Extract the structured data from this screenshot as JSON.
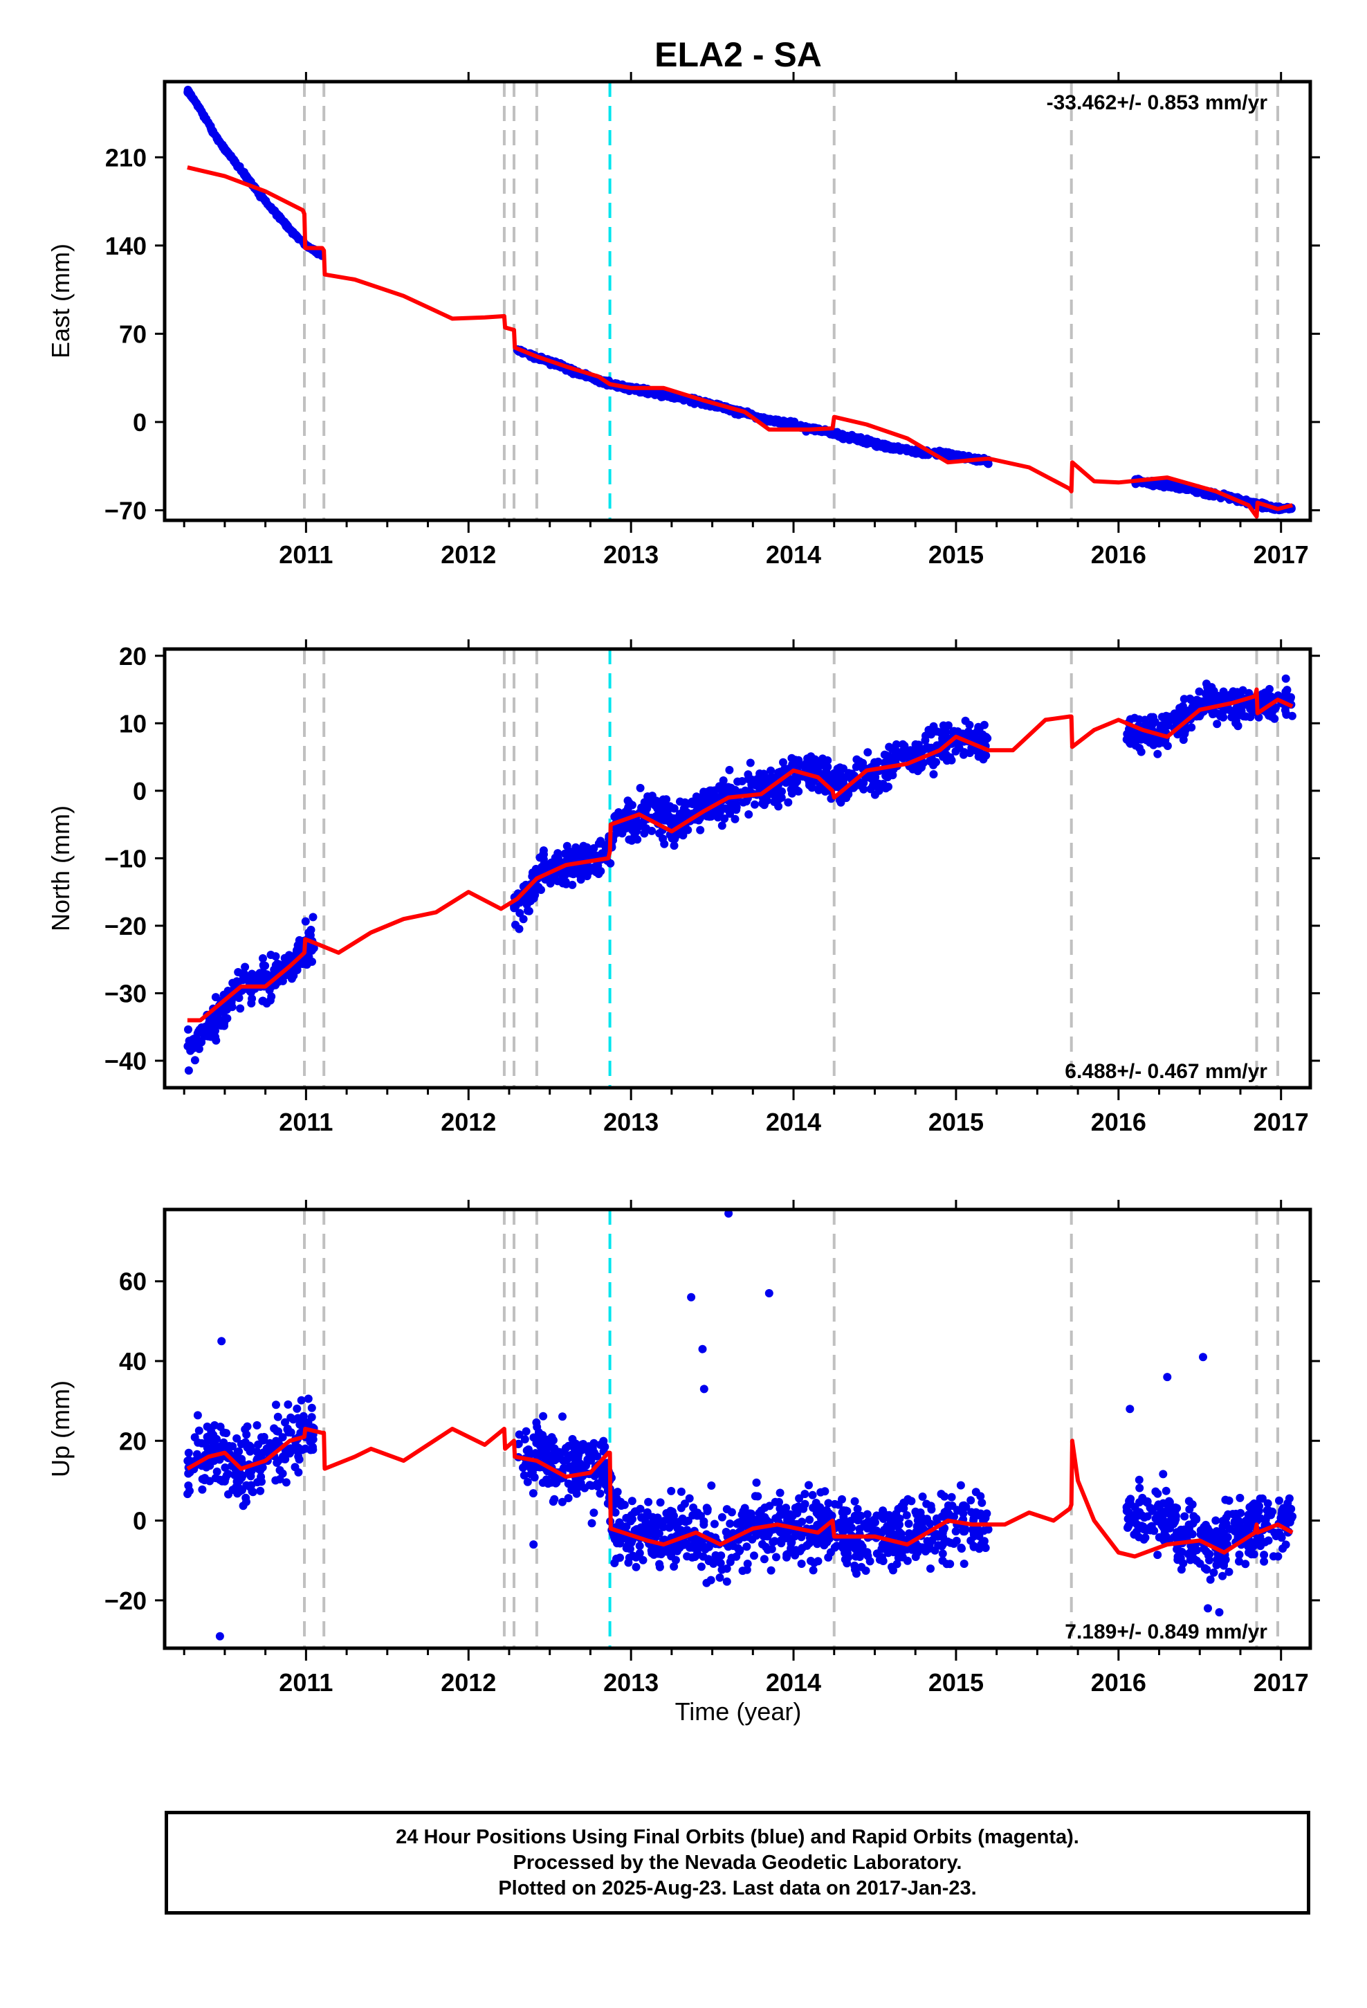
{
  "chart_data": {
    "title": "ELA2 - SA",
    "type": "scatter",
    "x_label": "Time (year)",
    "xlim": [
      2010.13,
      2017.18
    ],
    "x_ticks": [
      2011,
      2012,
      2013,
      2014,
      2015,
      2016,
      2017
    ],
    "x_tick_labels": [
      "2011",
      "2012",
      "2013",
      "2014",
      "2015",
      "2016",
      "2017"
    ],
    "equipment_change_lines": [
      2010.99,
      2011.11,
      2012.22,
      2012.28,
      2012.42,
      2014.25,
      2015.71,
      2016.85,
      2016.98
    ],
    "earthquake_line": 2012.87,
    "colors": {
      "data": "#0000ee",
      "model": "#ff0000",
      "equipment": "#c0c0c0",
      "earthquake": "#00e5ee"
    },
    "panels": [
      {
        "name": "East",
        "ylabel": "East (mm)",
        "ylim": [
          -78,
          270
        ],
        "y_ticks": [
          -70,
          0,
          70,
          140,
          210
        ],
        "y_tick_labels": [
          "−70",
          "0",
          "70",
          "140",
          "210"
        ],
        "rate_label": "-33.462+/- 0.853 mm/yr",
        "rate_position": "top-right",
        "data_segments": [
          [
            [
              2010.27,
              263
            ],
            [
              2010.35,
              248
            ],
            [
              2010.45,
              225
            ],
            [
              2010.6,
              200
            ],
            [
              2010.75,
              175
            ],
            [
              2010.9,
              153
            ],
            [
              2011.0,
              140
            ],
            [
              2011.1,
              132
            ]
          ],
          [
            [
              2012.3,
              57
            ],
            [
              2012.5,
              48
            ],
            [
              2012.7,
              38
            ],
            [
              2012.87,
              30
            ],
            [
              2013.0,
              27
            ],
            [
              2013.2,
              22
            ],
            [
              2013.5,
              14
            ],
            [
              2013.8,
              3
            ],
            [
              2014.0,
              -2
            ],
            [
              2014.2,
              -8
            ],
            [
              2014.4,
              -14
            ],
            [
              2014.6,
              -20
            ],
            [
              2014.8,
              -24
            ],
            [
              2015.0,
              -27
            ],
            [
              2015.2,
              -31
            ]
          ],
          [
            [
              2016.1,
              -47
            ],
            [
              2016.3,
              -50
            ],
            [
              2016.5,
              -55
            ],
            [
              2016.7,
              -60
            ],
            [
              2016.85,
              -65
            ],
            [
              2017.0,
              -69
            ],
            [
              2017.07,
              -68
            ]
          ]
        ],
        "scatter": [
          0.9,
          1.4,
          1.4
        ],
        "model": [
          [
            2010.27,
            202
          ],
          [
            2010.5,
            195
          ],
          [
            2010.75,
            183
          ],
          [
            2010.98,
            168
          ],
          [
            2010.99,
            165
          ],
          [
            2010.995,
            138
          ],
          [
            2011.1,
            138
          ],
          [
            2011.11,
            136
          ],
          [
            2011.115,
            117
          ],
          [
            2011.3,
            113
          ],
          [
            2011.6,
            100
          ],
          [
            2011.9,
            82
          ],
          [
            2012.1,
            83
          ],
          [
            2012.22,
            84
          ],
          [
            2012.225,
            75
          ],
          [
            2012.28,
            73
          ],
          [
            2012.285,
            59
          ],
          [
            2012.42,
            52
          ],
          [
            2012.6,
            44
          ],
          [
            2012.8,
            36
          ],
          [
            2012.87,
            30
          ],
          [
            2013.0,
            27
          ],
          [
            2013.2,
            27
          ],
          [
            2013.45,
            17
          ],
          [
            2013.7,
            8
          ],
          [
            2013.85,
            -6
          ],
          [
            2014.1,
            -6
          ],
          [
            2014.24,
            -5
          ],
          [
            2014.25,
            4
          ],
          [
            2014.45,
            -2
          ],
          [
            2014.7,
            -13
          ],
          [
            2014.95,
            -32
          ],
          [
            2015.2,
            -29
          ],
          [
            2015.45,
            -36
          ],
          [
            2015.7,
            -53
          ],
          [
            2015.71,
            -55
          ],
          [
            2015.715,
            -32
          ],
          [
            2015.85,
            -47
          ],
          [
            2016.0,
            -48
          ],
          [
            2016.3,
            -44
          ],
          [
            2016.6,
            -55
          ],
          [
            2016.8,
            -66
          ],
          [
            2016.85,
            -75
          ],
          [
            2016.855,
            -64
          ],
          [
            2016.98,
            -69
          ],
          [
            2017.07,
            -66
          ]
        ]
      },
      {
        "name": "North",
        "ylabel": "North (mm)",
        "ylim": [
          -44,
          21
        ],
        "y_ticks": [
          -40,
          -30,
          -20,
          -10,
          0,
          10,
          20
        ],
        "y_tick_labels": [
          "−40",
          "−30",
          "−20",
          "−10",
          "0",
          "10",
          "20"
        ],
        "rate_label": "6.488+/- 0.467 mm/yr",
        "rate_position": "bottom-right",
        "data_segments": [
          [
            [
              2010.27,
              -38
            ],
            [
              2010.4,
              -35
            ],
            [
              2010.5,
              -32
            ],
            [
              2010.6,
              -29
            ],
            [
              2010.75,
              -28
            ],
            [
              2010.9,
              -26
            ],
            [
              2011.0,
              -23
            ],
            [
              2011.05,
              -22
            ]
          ],
          [
            [
              2012.28,
              -17
            ],
            [
              2012.38,
              -15
            ],
            [
              2012.45,
              -12
            ],
            [
              2012.6,
              -11
            ],
            [
              2012.8,
              -10
            ],
            [
              2012.87,
              -8
            ],
            [
              2012.9,
              -5
            ],
            [
              2013.0,
              -4
            ],
            [
              2013.15,
              -3
            ],
            [
              2013.25,
              -5
            ],
            [
              2013.4,
              -3
            ],
            [
              2013.6,
              -1
            ],
            [
              2013.8,
              0
            ],
            [
              2014.0,
              2
            ],
            [
              2014.1,
              3
            ],
            [
              2014.25,
              1
            ],
            [
              2014.45,
              2
            ],
            [
              2014.7,
              5
            ],
            [
              2014.9,
              7
            ],
            [
              2015.0,
              8
            ],
            [
              2015.2,
              7
            ]
          ],
          [
            [
              2016.05,
              9
            ],
            [
              2016.25,
              8
            ],
            [
              2016.4,
              11
            ],
            [
              2016.55,
              13
            ],
            [
              2016.75,
              13
            ],
            [
              2016.9,
              13
            ],
            [
              2017.0,
              13
            ],
            [
              2017.07,
              14
            ]
          ]
        ],
        "scatter": [
          2.0,
          2.0,
          1.8
        ],
        "model": [
          [
            2010.27,
            -34
          ],
          [
            2010.35,
            -34
          ],
          [
            2010.5,
            -31
          ],
          [
            2010.6,
            -29
          ],
          [
            2010.75,
            -29
          ],
          [
            2010.9,
            -26
          ],
          [
            2010.99,
            -24
          ],
          [
            2010.995,
            -22
          ],
          [
            2011.1,
            -23
          ],
          [
            2011.2,
            -24
          ],
          [
            2011.4,
            -21
          ],
          [
            2011.6,
            -19
          ],
          [
            2011.8,
            -18
          ],
          [
            2012.0,
            -15
          ],
          [
            2012.2,
            -17.5
          ],
          [
            2012.3,
            -16
          ],
          [
            2012.42,
            -13
          ],
          [
            2012.6,
            -11
          ],
          [
            2012.86,
            -10
          ],
          [
            2012.87,
            -9
          ],
          [
            2012.875,
            -5
          ],
          [
            2013.05,
            -3.5
          ],
          [
            2013.25,
            -6
          ],
          [
            2013.45,
            -3
          ],
          [
            2013.6,
            -1
          ],
          [
            2013.8,
            -0.5
          ],
          [
            2014.0,
            3
          ],
          [
            2014.15,
            2
          ],
          [
            2014.24,
            0
          ],
          [
            2014.25,
            -1
          ],
          [
            2014.45,
            3
          ],
          [
            2014.7,
            4
          ],
          [
            2014.9,
            6
          ],
          [
            2015.0,
            8
          ],
          [
            2015.2,
            6
          ],
          [
            2015.35,
            6
          ],
          [
            2015.55,
            10.5
          ],
          [
            2015.7,
            11
          ],
          [
            2015.71,
            11
          ],
          [
            2015.715,
            6.5
          ],
          [
            2015.85,
            9
          ],
          [
            2016.0,
            10.5
          ],
          [
            2016.15,
            9
          ],
          [
            2016.3,
            8
          ],
          [
            2016.5,
            12
          ],
          [
            2016.7,
            13
          ],
          [
            2016.84,
            14
          ],
          [
            2016.85,
            15
          ],
          [
            2016.855,
            11.5
          ],
          [
            2016.98,
            13.5
          ],
          [
            2017.07,
            12.5
          ]
        ]
      },
      {
        "name": "Up",
        "ylabel": "Up (mm)",
        "ylim": [
          -32,
          78
        ],
        "y_ticks": [
          -20,
          0,
          20,
          40,
          60
        ],
        "y_tick_labels": [
          "−20",
          "0",
          "20",
          "40",
          "60"
        ],
        "rate_label": "7.189+/- 0.849 mm/yr",
        "rate_position": "bottom-right",
        "data_segments": [
          [
            [
              2010.27,
              14
            ],
            [
              2010.45,
              17
            ],
            [
              2010.6,
              13
            ],
            [
              2010.8,
              18
            ],
            [
              2010.95,
              20
            ],
            [
              2011.05,
              24
            ]
          ],
          [
            [
              2012.3,
              17
            ],
            [
              2012.5,
              15
            ],
            [
              2012.7,
              12
            ],
            [
              2012.85,
              14
            ],
            [
              2012.9,
              -2
            ],
            [
              2013.1,
              -3
            ],
            [
              2013.3,
              -4
            ],
            [
              2013.6,
              -4
            ],
            [
              2013.9,
              -1
            ],
            [
              2014.1,
              -2
            ],
            [
              2014.3,
              -3
            ],
            [
              2014.5,
              -4
            ],
            [
              2014.8,
              -2
            ],
            [
              2015.0,
              -1
            ],
            [
              2015.2,
              -2
            ]
          ],
          [
            [
              2016.05,
              3
            ],
            [
              2016.25,
              1
            ],
            [
              2016.4,
              -3
            ],
            [
              2016.6,
              -6
            ],
            [
              2016.8,
              -2
            ],
            [
              2017.0,
              -1
            ],
            [
              2017.07,
              0
            ]
          ]
        ],
        "scatter": [
          6.0,
          6.0,
          6.0
        ],
        "outliers": [
          [
            2010.48,
            45
          ],
          [
            2010.47,
            -29
          ],
          [
            2013.37,
            56
          ],
          [
            2013.44,
            43
          ],
          [
            2013.45,
            33
          ],
          [
            2013.6,
            77
          ],
          [
            2013.85,
            57
          ],
          [
            2016.07,
            28
          ],
          [
            2016.3,
            36
          ],
          [
            2016.52,
            41
          ],
          [
            2016.55,
            -22
          ],
          [
            2016.62,
            -23
          ],
          [
            2012.4,
            -6
          ]
        ],
        "model": [
          [
            2010.27,
            13
          ],
          [
            2010.4,
            16
          ],
          [
            2010.5,
            17
          ],
          [
            2010.6,
            13
          ],
          [
            2010.75,
            15
          ],
          [
            2010.9,
            20
          ],
          [
            2010.99,
            21
          ],
          [
            2010.995,
            23
          ],
          [
            2011.1,
            22
          ],
          [
            2011.11,
            22
          ],
          [
            2011.115,
            13
          ],
          [
            2011.3,
            16
          ],
          [
            2011.4,
            18
          ],
          [
            2011.6,
            15
          ],
          [
            2011.9,
            23
          ],
          [
            2012.1,
            19
          ],
          [
            2012.22,
            23
          ],
          [
            2012.225,
            18
          ],
          [
            2012.28,
            20
          ],
          [
            2012.285,
            16
          ],
          [
            2012.42,
            15
          ],
          [
            2012.6,
            11
          ],
          [
            2012.75,
            12
          ],
          [
            2012.86,
            17
          ],
          [
            2012.87,
            17
          ],
          [
            2012.875,
            -2
          ],
          [
            2013.1,
            -5
          ],
          [
            2013.2,
            -6
          ],
          [
            2013.4,
            -3
          ],
          [
            2013.55,
            -6
          ],
          [
            2013.75,
            -2
          ],
          [
            2013.9,
            -1
          ],
          [
            2014.15,
            -3
          ],
          [
            2014.24,
            0
          ],
          [
            2014.25,
            -4
          ],
          [
            2014.5,
            -4
          ],
          [
            2014.7,
            -6
          ],
          [
            2014.95,
            0
          ],
          [
            2015.1,
            -1
          ],
          [
            2015.3,
            -1
          ],
          [
            2015.45,
            2
          ],
          [
            2015.6,
            0
          ],
          [
            2015.7,
            3
          ],
          [
            2015.71,
            4
          ],
          [
            2015.715,
            20
          ],
          [
            2015.75,
            10
          ],
          [
            2015.85,
            0
          ],
          [
            2016.0,
            -8
          ],
          [
            2016.1,
            -9
          ],
          [
            2016.3,
            -6
          ],
          [
            2016.5,
            -5
          ],
          [
            2016.65,
            -8
          ],
          [
            2016.84,
            -3
          ],
          [
            2016.85,
            -1
          ],
          [
            2016.855,
            -3
          ],
          [
            2016.98,
            -1
          ],
          [
            2017.07,
            -3
          ]
        ]
      }
    ]
  },
  "footer": {
    "line1": "24 Hour Positions Using Final Orbits (blue) and Rapid Orbits (magenta).",
    "line2": "Processed by the Nevada Geodetic Laboratory.",
    "line3": "Plotted on 2025-Aug-23. Last data on 2017-Jan-23."
  }
}
